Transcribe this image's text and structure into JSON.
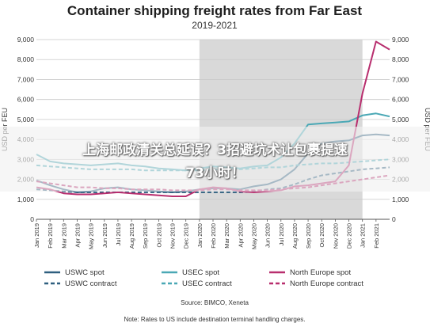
{
  "chart_data": {
    "type": "line",
    "title": "Container shipping freight rates from Far East",
    "subtitle": "2019-2021",
    "ylabel": "USD per FEU",
    "ylim": [
      0,
      9000
    ],
    "yticks": [
      "0",
      "1,000",
      "2,000",
      "3,000",
      "4,000",
      "5,000",
      "6,000",
      "7,000",
      "8,000",
      "9,000"
    ],
    "xticks": [
      "Jan 2019",
      "Feb 2019",
      "Mar 2019",
      "Apr 2019",
      "May 2019",
      "Jun 2019",
      "Jul 2019",
      "Aug 2019",
      "Sep 2019",
      "Oct 2019",
      "Nov 2019",
      "Dec 2019",
      "Jan 2020",
      "Feb 2020",
      "Mar 2020",
      "Apr 2020",
      "May 2020",
      "Jun 2020",
      "Jul 2020",
      "Aug 2020",
      "Sep 2020",
      "Oct 2020",
      "Nov 2020",
      "Dec 2020",
      "Jan 2021",
      "Feb 2021"
    ],
    "shaded_region": [
      "Jan 2020",
      "Jan 2021"
    ],
    "x": [
      0,
      1,
      2,
      3,
      4,
      5,
      6,
      7,
      8,
      9,
      10,
      11,
      12,
      13,
      14,
      15,
      16,
      17,
      18,
      19,
      20,
      21,
      22,
      23,
      24,
      25,
      26
    ],
    "series": [
      {
        "name": "USWC spot",
        "color": "#2e5f7f",
        "dash": false,
        "values": [
          1950,
          1700,
          1500,
          1350,
          1400,
          1550,
          1600,
          1500,
          1450,
          1400,
          1350,
          1400,
          1500,
          1550,
          1550,
          1500,
          1650,
          1750,
          2000,
          2500,
          3300,
          3800,
          3900,
          3950,
          4200,
          4250,
          4200
        ]
      },
      {
        "name": "USWC contract",
        "color": "#2e5f7f",
        "dash": true,
        "values": [
          1500,
          1450,
          1400,
          1350,
          1350,
          1350,
          1350,
          1350,
          1350,
          1350,
          1350,
          1350,
          1350,
          1350,
          1350,
          1350,
          1400,
          1500,
          1550,
          1750,
          2000,
          2200,
          2300,
          2400,
          2500,
          2550,
          2600
        ]
      },
      {
        "name": "USEC spot",
        "color": "#4aa8b5",
        "dash": false,
        "values": [
          3250,
          2900,
          2800,
          2750,
          2700,
          2750,
          2800,
          2700,
          2650,
          2550,
          2500,
          2450,
          2550,
          2650,
          2600,
          2550,
          2650,
          2700,
          3100,
          3800,
          4750,
          4800,
          4850,
          4900,
          5200,
          5300,
          5150
        ]
      },
      {
        "name": "USEC contract",
        "color": "#4aa8b5",
        "dash": true,
        "values": [
          2700,
          2650,
          2600,
          2550,
          2500,
          2500,
          2500,
          2500,
          2450,
          2450,
          2450,
          2450,
          2450,
          2500,
          2500,
          2500,
          2550,
          2600,
          2600,
          2700,
          2750,
          2800,
          2800,
          2850,
          2900,
          2950,
          3000
        ]
      },
      {
        "name": "North Europe spot",
        "color": "#b82e6e",
        "dash": false,
        "values": [
          1600,
          1500,
          1300,
          1250,
          1250,
          1300,
          1350,
          1300,
          1250,
          1200,
          1150,
          1150,
          1500,
          1600,
          1550,
          1400,
          1350,
          1400,
          1450,
          1650,
          1700,
          1800,
          1900,
          2700,
          6300,
          8900,
          8500
        ]
      },
      {
        "name": "North Europe contract",
        "color": "#b82e6e",
        "dash": true,
        "values": [
          1900,
          1800,
          1700,
          1600,
          1600,
          1550,
          1550,
          1500,
          1500,
          1500,
          1450,
          1450,
          1450,
          1500,
          1500,
          1450,
          1450,
          1450,
          1500,
          1550,
          1600,
          1700,
          1800,
          1900,
          2000,
          2100,
          2200
        ]
      }
    ],
    "source": "Source: BIMCO, Xeneta",
    "note": "Note: Rates to US include destination terminal handling charges."
  },
  "overlay": {
    "line1": "上海邮政清关总延误？3招避坑术让包裹提速",
    "line2": "73小时！"
  }
}
